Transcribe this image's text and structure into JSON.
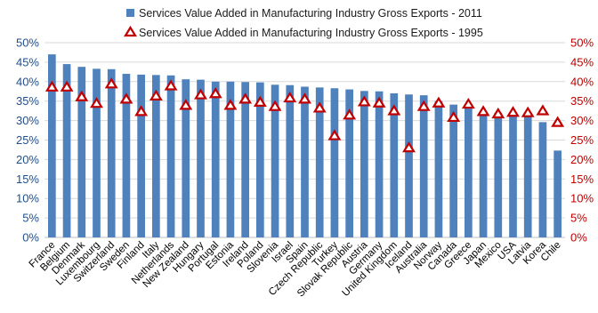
{
  "chart_data": {
    "type": "bar",
    "categories": [
      "France",
      "Belgium",
      "Denmark",
      "Luxembourg",
      "Switzerland",
      "Sweden",
      "Finland",
      "Italy",
      "Netherlands",
      "New Zealand",
      "Hungary",
      "Portugal",
      "Estonia",
      "Ireland",
      "Poland",
      "Slovenia",
      "Israel",
      "Spain",
      "Czech Republic",
      "Turkey",
      "Slovak Republic",
      "Austria",
      "Germany",
      "United Kingdom",
      "Iceland",
      "Australia",
      "Norway",
      "Canada",
      "Greece",
      "Japan",
      "Mexico",
      "USA",
      "Latvia",
      "Korea",
      "Chile"
    ],
    "series": [
      {
        "name": "Services Value Added in Manufacturing Industry Gross Exports - 2011",
        "kind": "bar",
        "color": "#4f81bd",
        "values": [
          47.0,
          44.5,
          43.8,
          43.3,
          43.2,
          42.0,
          41.8,
          41.7,
          41.6,
          40.6,
          40.5,
          40.0,
          40.0,
          39.9,
          39.8,
          39.2,
          39.1,
          38.7,
          38.5,
          38.3,
          38.0,
          37.6,
          37.5,
          37.0,
          36.7,
          36.5,
          35.0,
          34.1,
          33.5,
          32.3,
          32.0,
          31.5,
          31.0,
          29.6,
          22.3
        ]
      },
      {
        "name": "Services Value Added in Manufacturing Industry Gross Exports - 1995",
        "kind": "triangle",
        "color": "#c00000",
        "values": [
          38.5,
          38.5,
          36.0,
          34.3,
          39.3,
          35.4,
          32.2,
          36.2,
          38.8,
          33.8,
          36.5,
          36.8,
          33.8,
          35.4,
          34.6,
          33.5,
          35.7,
          35.4,
          33.1,
          26.0,
          31.3,
          34.7,
          34.4,
          32.4,
          22.9,
          33.5,
          34.4,
          30.7,
          34.1,
          32.2,
          31.6,
          32.0,
          31.9,
          32.4,
          29.4
        ]
      }
    ],
    "y_left": {
      "ticks": [
        "0%",
        "5%",
        "10%",
        "15%",
        "20%",
        "25%",
        "30%",
        "35%",
        "40%",
        "45%",
        "50%"
      ],
      "ylim": [
        0,
        50
      ],
      "color": "#1f4e8c"
    },
    "y_right": {
      "ticks": [
        "0%",
        "5%",
        "10%",
        "15%",
        "20%",
        "25%",
        "30%",
        "35%",
        "40%",
        "45%",
        "50%"
      ],
      "ylim": [
        0,
        50
      ],
      "color": "#c00000"
    },
    "grid": "horizontal",
    "legend_position": "top"
  }
}
